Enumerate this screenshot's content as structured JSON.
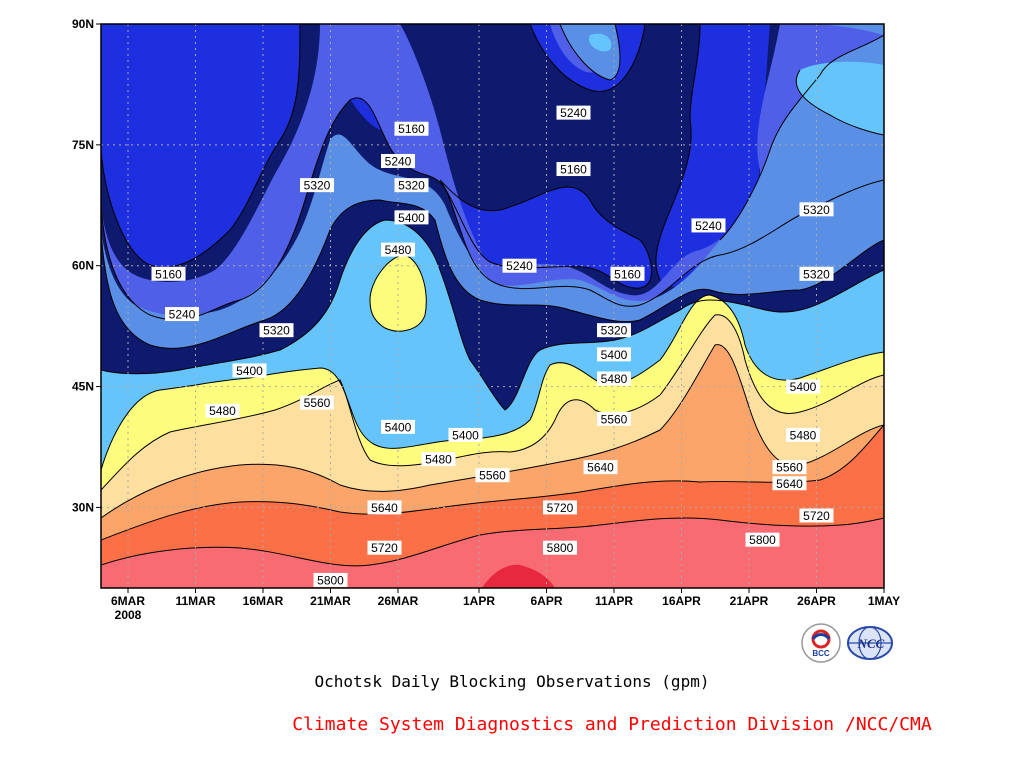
{
  "chart_data": {
    "type": "heatmap",
    "subtype": "filled-contour",
    "x_ticks": [
      "6MAR",
      "11MAR",
      "16MAR",
      "21MAR",
      "26MAR",
      "1APR",
      "6APR",
      "11APR",
      "16APR",
      "21APR",
      "26APR",
      "1MAY"
    ],
    "x_year": "2008",
    "y_ticks": [
      "30N",
      "45N",
      "60N",
      "75N",
      "90N"
    ],
    "x_range": [
      "2008-03-04",
      "2008-05-01"
    ],
    "y_range": [
      20,
      90
    ],
    "grid": true,
    "contour_levels": [
      5160,
      5240,
      5320,
      5400,
      5480,
      5560,
      5640,
      5720,
      5800
    ],
    "fill_colors": [
      "#0d1a6e",
      "#1e2fe0",
      "#4f5fe8",
      "#5a8fe6",
      "#64c4fb",
      "#fefc7c",
      "#fde0a0",
      "#fba56a",
      "#fb7046",
      "#f96b72",
      "#e8283e"
    ],
    "contour_labels": [
      {
        "value": "5160",
        "x": "27MAR",
        "y": 77
      },
      {
        "value": "5240",
        "x": "26MAR",
        "y": 73
      },
      {
        "value": "5320",
        "x": "27MAR",
        "y": 70
      },
      {
        "value": "5400",
        "x": "27MAR",
        "y": 66
      },
      {
        "value": "5480",
        "x": "26MAR",
        "y": 62
      },
      {
        "value": "5320",
        "x": "20MAR",
        "y": 70
      },
      {
        "value": "5160",
        "x": "9MAR",
        "y": 59
      },
      {
        "value": "5240",
        "x": "10MAR",
        "y": 54
      },
      {
        "value": "5320",
        "x": "17MAR",
        "y": 52
      },
      {
        "value": "5400",
        "x": "15MAR",
        "y": 47
      },
      {
        "value": "5480",
        "x": "13MAR",
        "y": 42
      },
      {
        "value": "5560",
        "x": "20MAR",
        "y": 43
      },
      {
        "value": "5400",
        "x": "26MAR",
        "y": 40
      },
      {
        "value": "5400",
        "x": "31MAR",
        "y": 39
      },
      {
        "value": "5480",
        "x": "29MAR",
        "y": 36
      },
      {
        "value": "5560",
        "x": "2APR",
        "y": 34
      },
      {
        "value": "5640",
        "x": "25MAR",
        "y": 30
      },
      {
        "value": "5720",
        "x": "25MAR",
        "y": 25
      },
      {
        "value": "5800",
        "x": "21MAR",
        "y": 21
      },
      {
        "value": "5720",
        "x": "7APR",
        "y": 30
      },
      {
        "value": "5800",
        "x": "7APR",
        "y": 25
      },
      {
        "value": "5240",
        "x": "8APR",
        "y": 79
      },
      {
        "value": "5160",
        "x": "8APR",
        "y": 72
      },
      {
        "value": "5240",
        "x": "4APR",
        "y": 60
      },
      {
        "value": "5160",
        "x": "12APR",
        "y": 59
      },
      {
        "value": "5320",
        "x": "11APR",
        "y": 52
      },
      {
        "value": "5400",
        "x": "11APR",
        "y": 49
      },
      {
        "value": "5480",
        "x": "11APR",
        "y": 46
      },
      {
        "value": "5560",
        "x": "11APR",
        "y": 41
      },
      {
        "value": "5640",
        "x": "10APR",
        "y": 35
      },
      {
        "value": "5240",
        "x": "18APR",
        "y": 65
      },
      {
        "value": "5320",
        "x": "26APR",
        "y": 67
      },
      {
        "value": "5320",
        "x": "26APR",
        "y": 59
      },
      {
        "value": "5400",
        "x": "25APR",
        "y": 45
      },
      {
        "value": "5480",
        "x": "25APR",
        "y": 39
      },
      {
        "value": "5560",
        "x": "24APR",
        "y": 35
      },
      {
        "value": "5640",
        "x": "24APR",
        "y": 33
      },
      {
        "value": "5720",
        "x": "26APR",
        "y": 29
      },
      {
        "value": "5800",
        "x": "22APR",
        "y": 26
      }
    ],
    "title": "Ochotsk Daily Blocking Observations (gpm)"
  },
  "footer": {
    "caption": "Ochotsk Daily Blocking Observations (gpm)",
    "credit": "Climate System Diagnostics and Prediction Division /NCC/CMA",
    "logo_left_text": "BCC",
    "logo_right_text": "NCC"
  }
}
